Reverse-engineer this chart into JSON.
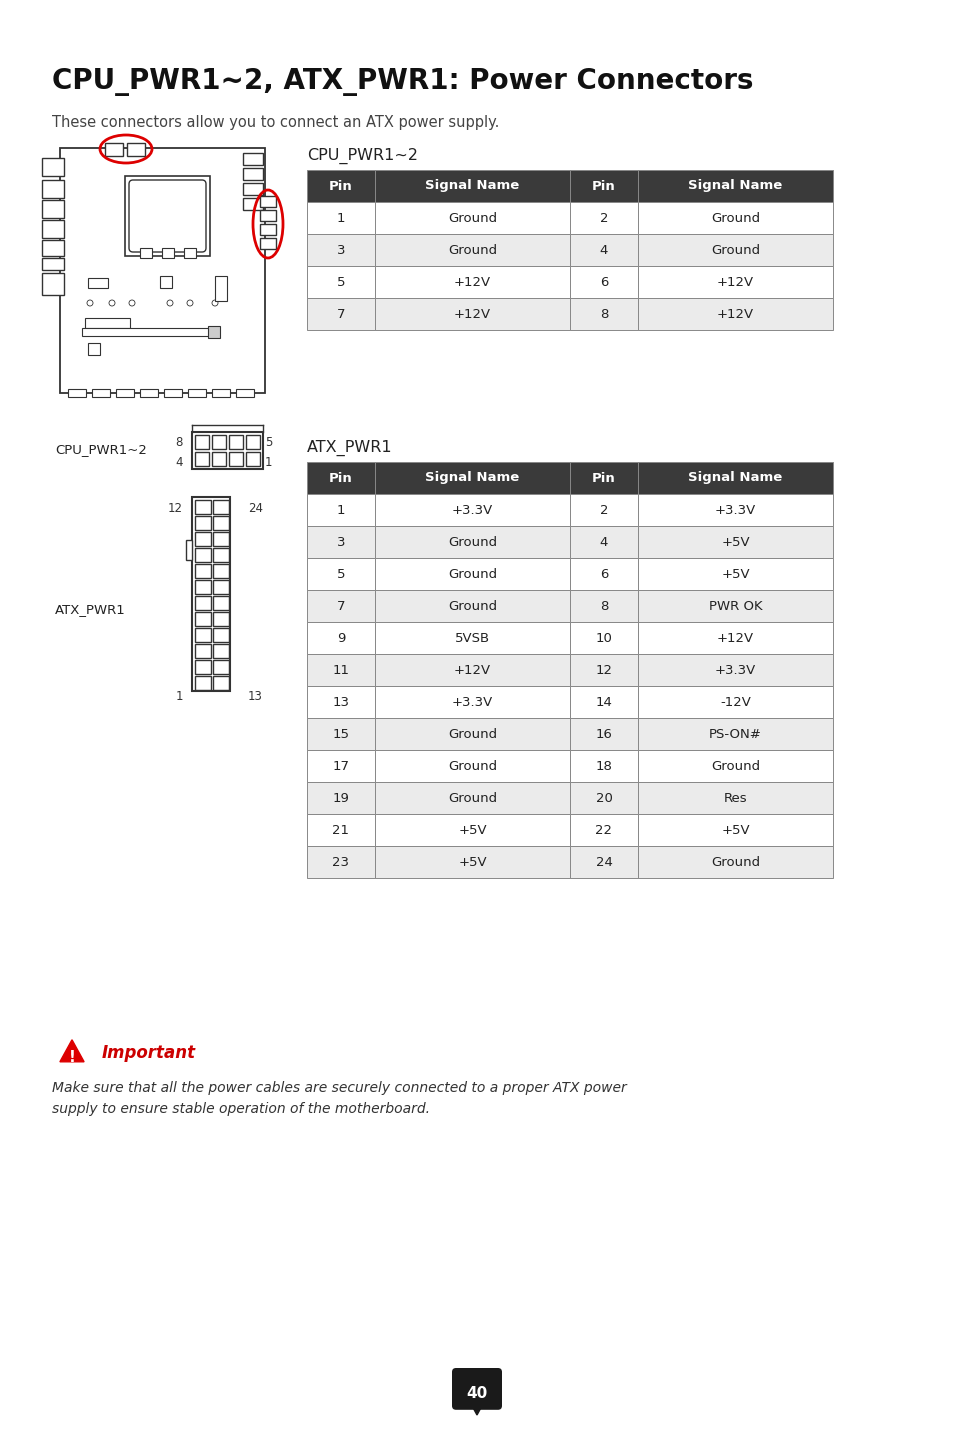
{
  "title": "CPU_PWR1~2, ATX_PWR1: Power Connectors",
  "subtitle": "These connectors allow you to connect an ATX power supply.",
  "bg_color": "#ffffff",
  "table_header_bg": "#3a3a3a",
  "table_header_fg": "#ffffff",
  "table_row_odd_bg": "#ebebeb",
  "table_row_even_bg": "#ffffff",
  "table_border": "#888888",
  "cpu_table_title": "CPU_PWR1~2",
  "cpu_table_headers": [
    "Pin",
    "Signal Name",
    "Pin",
    "Signal Name"
  ],
  "cpu_table_rows": [
    [
      "1",
      "Ground",
      "2",
      "Ground"
    ],
    [
      "3",
      "Ground",
      "4",
      "Ground"
    ],
    [
      "5",
      "+12V",
      "6",
      "+12V"
    ],
    [
      "7",
      "+12V",
      "8",
      "+12V"
    ]
  ],
  "atx_table_title": "ATX_PWR1",
  "atx_table_headers": [
    "Pin",
    "Signal Name",
    "Pin",
    "Signal Name"
  ],
  "atx_table_rows": [
    [
      "1",
      "+3.3V",
      "2",
      "+3.3V"
    ],
    [
      "3",
      "Ground",
      "4",
      "+5V"
    ],
    [
      "5",
      "Ground",
      "6",
      "+5V"
    ],
    [
      "7",
      "Ground",
      "8",
      "PWR OK"
    ],
    [
      "9",
      "5VSB",
      "10",
      "+12V"
    ],
    [
      "11",
      "+12V",
      "12",
      "+3.3V"
    ],
    [
      "13",
      "+3.3V",
      "14",
      "-12V"
    ],
    [
      "15",
      "Ground",
      "16",
      "PS-ON#"
    ],
    [
      "17",
      "Ground",
      "18",
      "Ground"
    ],
    [
      "19",
      "Ground",
      "20",
      "Res"
    ],
    [
      "21",
      "+5V",
      "22",
      "+5V"
    ],
    [
      "23",
      "+5V",
      "24",
      "Ground"
    ]
  ],
  "important_text": "Important",
  "important_body": "Make sure that all the power cables are securely connected to a proper ATX power\nsupply to ensure stable operation of the motherboard.",
  "page_number": "40"
}
